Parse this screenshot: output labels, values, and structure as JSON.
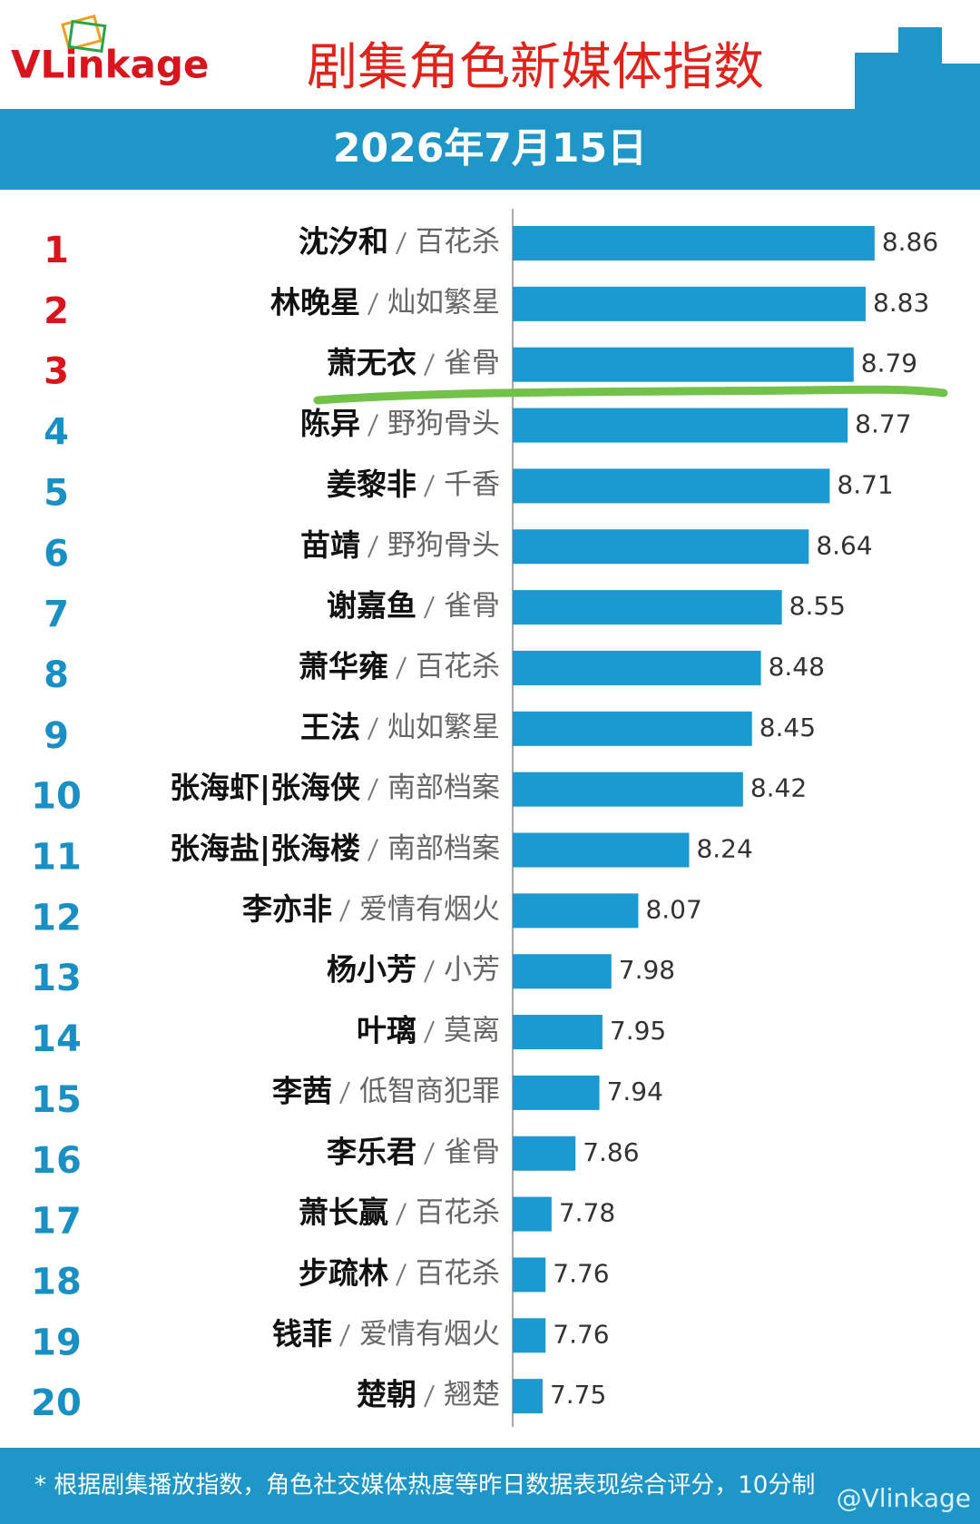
{
  "chart_data": {
    "type": "bar",
    "orientation": "horizontal",
    "logo": "VLinkage",
    "title": "剧集角色新媒体指数",
    "subtitle": "2026年7月15日",
    "ranks": [
      1,
      2,
      3,
      4,
      5,
      6,
      7,
      8,
      9,
      10,
      11,
      12,
      13,
      14,
      15,
      16,
      17,
      18,
      19,
      20
    ],
    "categories": [
      "沈汐和",
      "林晚星",
      "萧无衣",
      "陈异",
      "姜黎非",
      "苗靖",
      "谢嘉鱼",
      "萧华雍",
      "王法",
      "张海虾|张海侠",
      "张海盐|张海楼",
      "李亦非",
      "杨小芳",
      "叶璃",
      "李茜",
      "李乐君",
      "萧长赢",
      "步疏林",
      "钱菲",
      "楚朝"
    ],
    "dramas": [
      "百花杀",
      "灿如繁星",
      "雀骨",
      "野狗骨头",
      "千香",
      "野狗骨头",
      "雀骨",
      "百花杀",
      "灿如繁星",
      "南部档案",
      "南部档案",
      "爱情有烟火",
      "小芳",
      "莫离",
      "低智商犯罪",
      "雀骨",
      "百花杀",
      "百花杀",
      "爱情有烟火",
      "翘楚"
    ],
    "values": [
      8.86,
      8.83,
      8.79,
      8.77,
      8.71,
      8.64,
      8.55,
      8.48,
      8.45,
      8.42,
      8.24,
      8.07,
      7.98,
      7.95,
      7.94,
      7.86,
      7.78,
      7.76,
      7.76,
      7.75
    ],
    "xlim": [
      7.65,
      9.0
    ],
    "color": "#1a9ad0",
    "top_rank_color": "#d8141c",
    "rank_color": "#1a8fc4",
    "grid": false,
    "footnote": "* 根据剧集播放指数，角色社交媒体热度等昨日数据表现综合评分，10分制",
    "watermark": "@Vlinkage"
  }
}
